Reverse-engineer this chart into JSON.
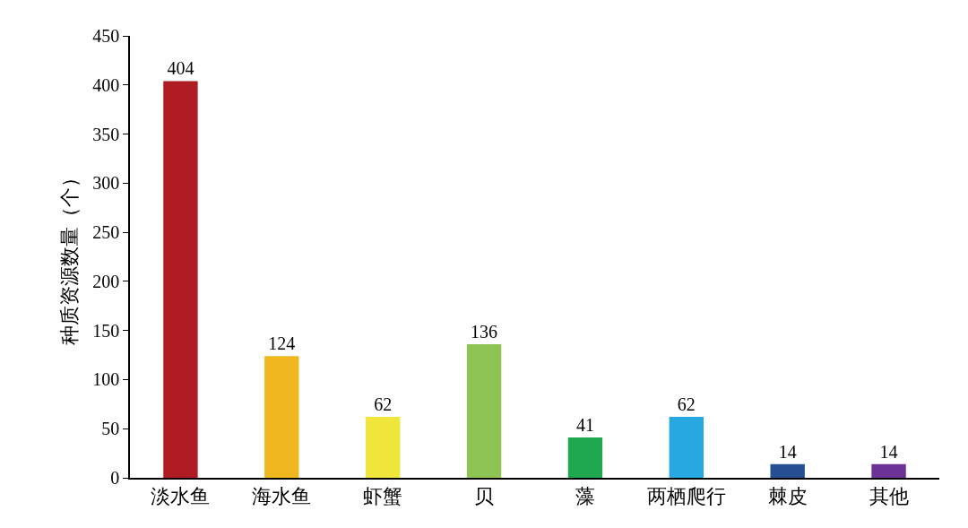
{
  "chart_data": {
    "type": "bar",
    "ylabel": "种质资源数量（个）",
    "categories": [
      "淡水鱼",
      "海水鱼",
      "虾蟹",
      "贝",
      "藻",
      "两栖爬行",
      "棘皮",
      "其他"
    ],
    "values": [
      404,
      124,
      62,
      136,
      41,
      62,
      14,
      14
    ],
    "colors": [
      "#b01c24",
      "#f0b81e",
      "#f0e63c",
      "#8dc454",
      "#1fa84f",
      "#27a8e0",
      "#264f93",
      "#6c3295"
    ],
    "ylim": [
      0,
      450
    ],
    "yticks": [
      0,
      50,
      100,
      150,
      200,
      250,
      300,
      350,
      400,
      450
    ],
    "data_labels": true
  }
}
